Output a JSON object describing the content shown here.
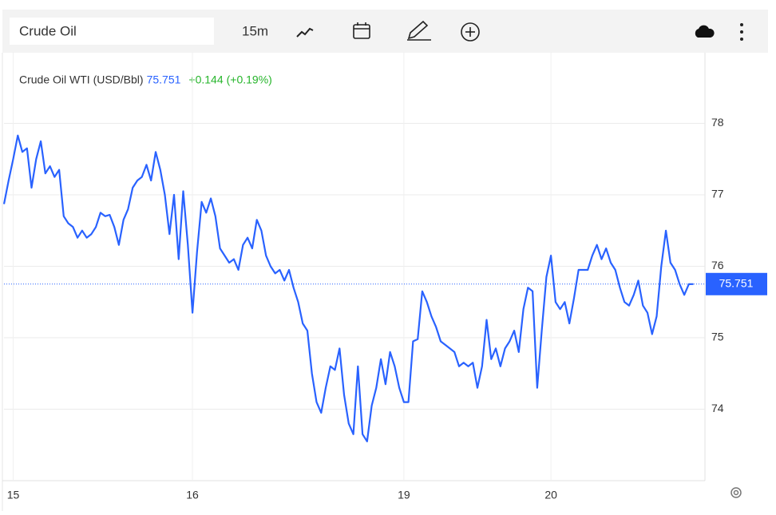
{
  "toolbar": {
    "search": "Crude Oil",
    "interval": "15m"
  },
  "chart_data": {
    "type": "line",
    "series": [
      {
        "name": "Crude Oil WTI (USD/Bbl)",
        "color": "#2962ff",
        "values": [
          76.87,
          77.2,
          77.5,
          77.83,
          77.6,
          77.65,
          77.1,
          77.5,
          77.75,
          77.3,
          77.4,
          77.25,
          77.35,
          76.7,
          76.6,
          76.55,
          76.4,
          76.5,
          76.4,
          76.45,
          76.55,
          76.75,
          76.7,
          76.72,
          76.55,
          76.3,
          76.65,
          76.8,
          77.1,
          77.2,
          77.25,
          77.42,
          77.2,
          77.6,
          77.35,
          77.0,
          76.45,
          77.0,
          76.1,
          77.05,
          76.3,
          75.35,
          76.2,
          76.9,
          76.75,
          76.95,
          76.7,
          76.25,
          76.15,
          76.05,
          76.1,
          75.95,
          76.3,
          76.4,
          76.25,
          76.65,
          76.5,
          76.15,
          76.0,
          75.9,
          75.95,
          75.8,
          75.95,
          75.7,
          75.5,
          75.2,
          75.1,
          74.5,
          74.1,
          73.95,
          74.3,
          74.6,
          74.55,
          74.85,
          74.2,
          73.8,
          73.65,
          74.6,
          73.65,
          73.55,
          74.05,
          74.3,
          74.7,
          74.35,
          74.8,
          74.6,
          74.3,
          74.1,
          74.1,
          74.95,
          74.98,
          75.65,
          75.5,
          75.3,
          75.15,
          74.95,
          74.9,
          74.85,
          74.8,
          74.6,
          74.65,
          74.6,
          74.65,
          74.3,
          74.6,
          75.25,
          74.7,
          74.85,
          74.6,
          74.85,
          74.95,
          75.1,
          74.8,
          75.4,
          75.7,
          75.65,
          74.3,
          75.1,
          75.85,
          76.15,
          75.5,
          75.4,
          75.5,
          75.2,
          75.55,
          75.95,
          75.95,
          75.95,
          76.15,
          76.3,
          76.1,
          76.25,
          76.05,
          75.95,
          75.7,
          75.5,
          75.45,
          75.6,
          75.8,
          75.45,
          75.35,
          75.05,
          75.3,
          76.0,
          76.5,
          76.05,
          75.95,
          75.75,
          75.6,
          75.75,
          75.751
        ]
      }
    ],
    "last_value": 75.751,
    "change": "+0.144",
    "change_pct": "(+0.19%)",
    "change_color": "#26b52b",
    "xlim": [
      0,
      152.5
    ],
    "xticks": [
      {
        "value": 2,
        "label": "15"
      },
      {
        "value": 41,
        "label": "16"
      },
      {
        "value": 87,
        "label": "19"
      },
      {
        "value": 119,
        "label": "20"
      }
    ],
    "ylim": [
      73,
      79
    ],
    "yticks": [
      74,
      75,
      76,
      77,
      78
    ],
    "grid": true
  }
}
